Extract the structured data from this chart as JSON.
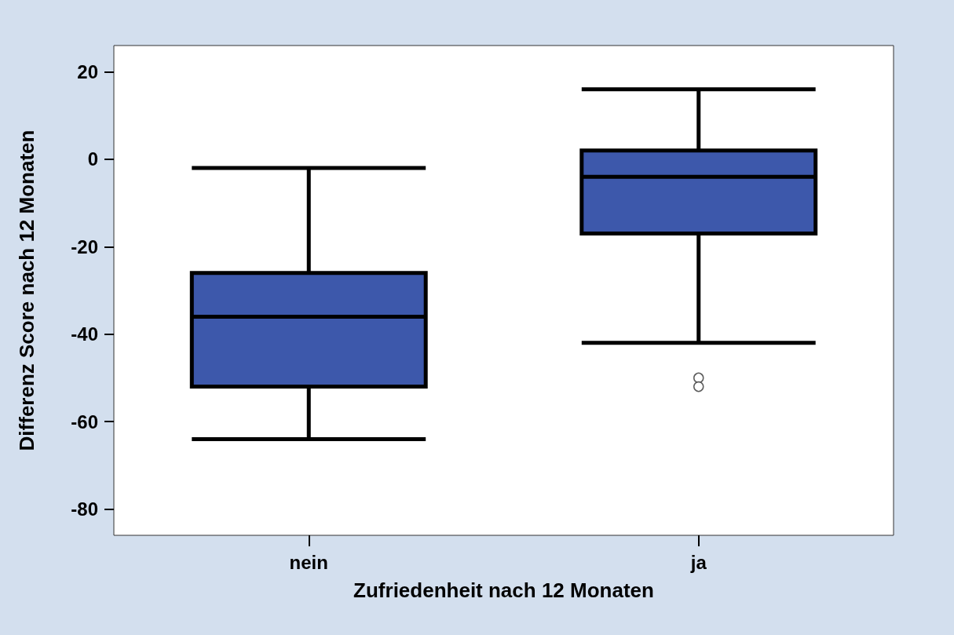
{
  "chart_data": {
    "type": "box",
    "xlabel": "Zufriedenheit nach 12 Monaten",
    "ylabel": "Differenz Score nach 12 Monaten",
    "categories": [
      "nein",
      "ja"
    ],
    "series": [
      {
        "color": "#3d58ab",
        "boxes": [
          {
            "low": -64,
            "q1": -52,
            "median": -36,
            "q3": -26,
            "high": -2
          },
          {
            "low": -42,
            "q1": -17,
            "median": -4,
            "q3": 2,
            "high": 16,
            "outliers": [
              -50,
              -52
            ]
          }
        ]
      }
    ],
    "ylim": [
      -86,
      26
    ],
    "yticks": [
      -80,
      -60,
      -40,
      -20,
      0,
      20
    ],
    "grid": false
  }
}
